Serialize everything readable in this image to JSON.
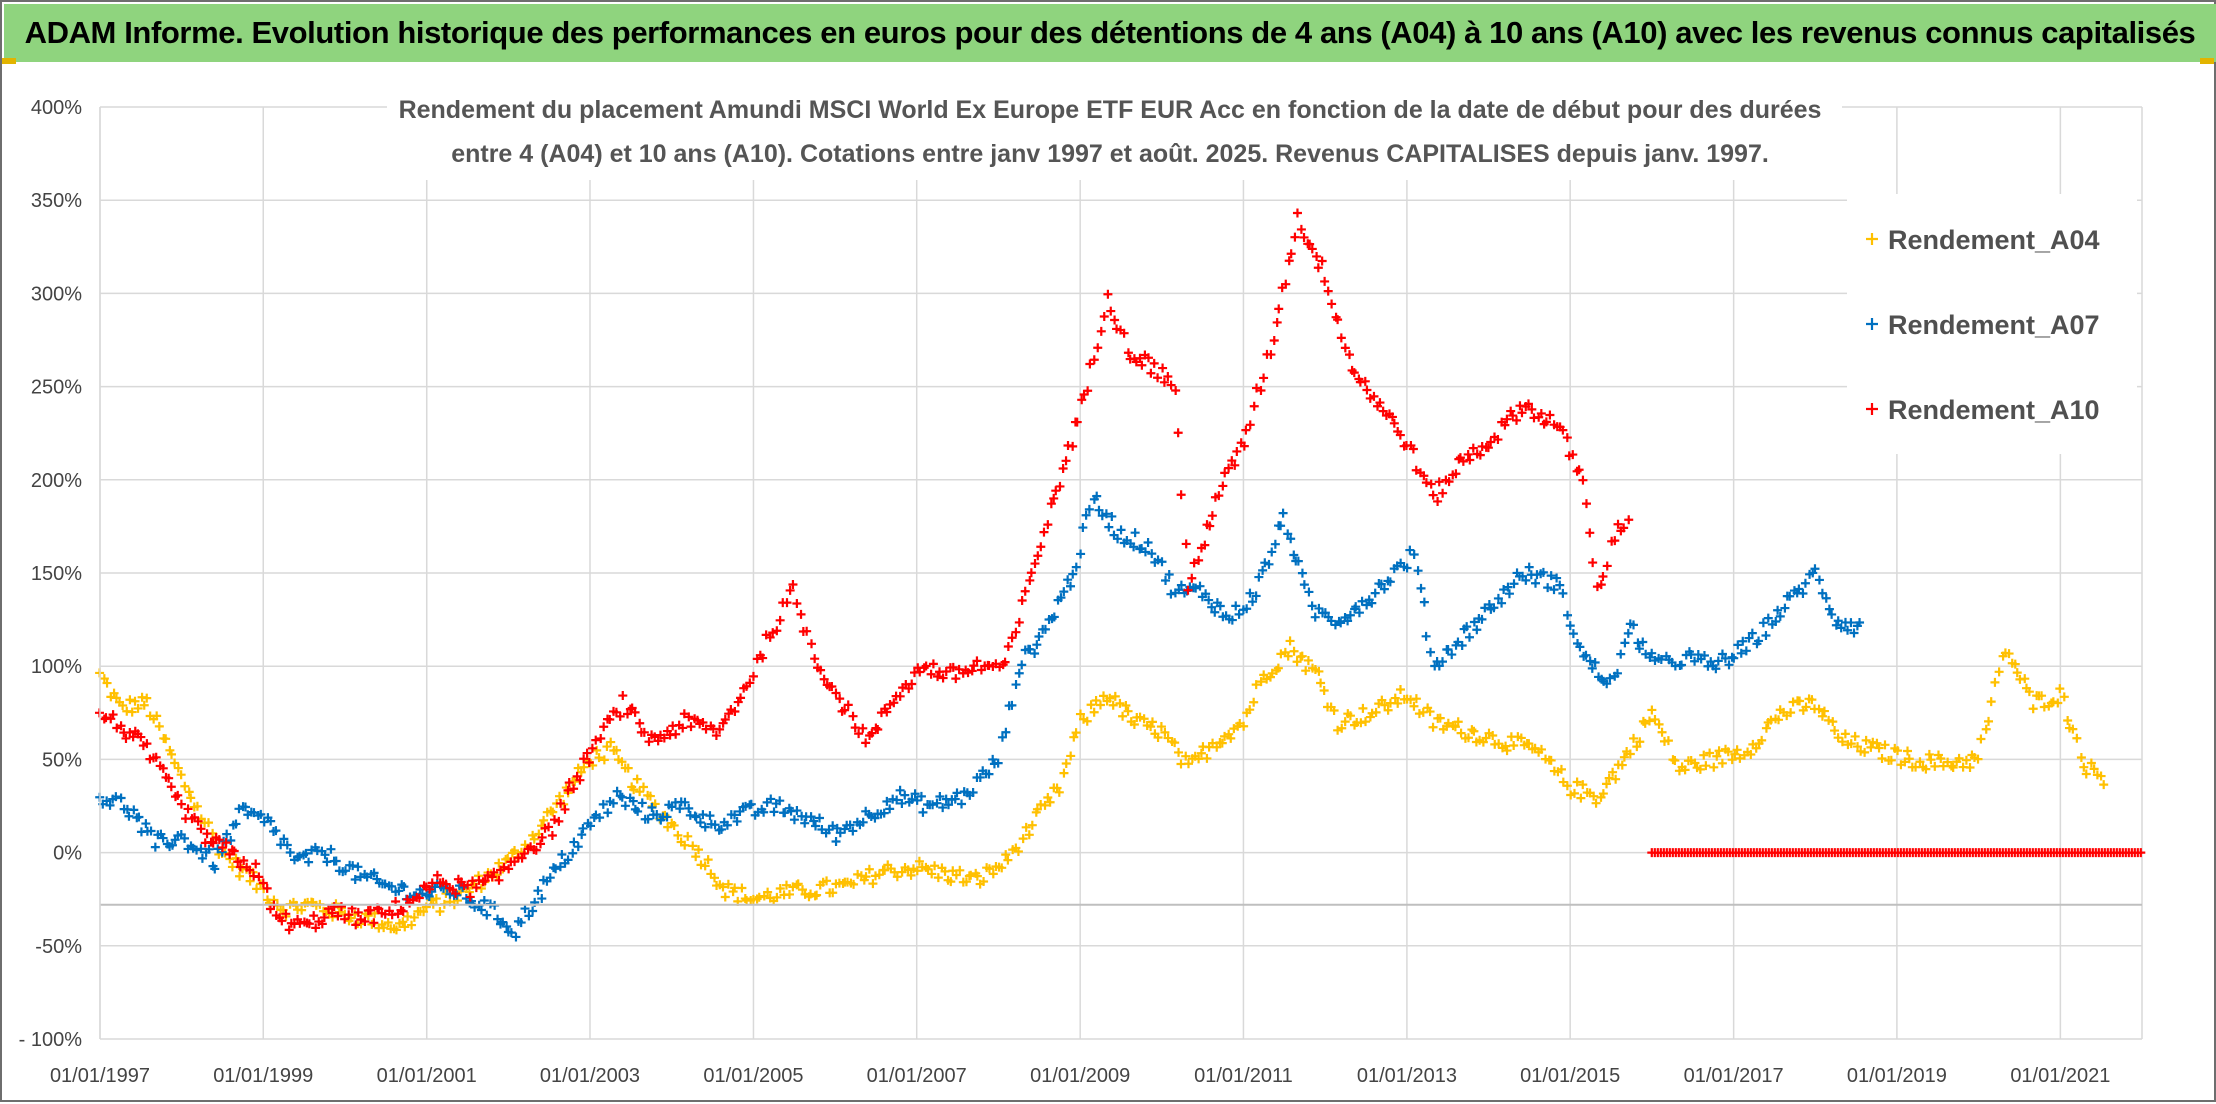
{
  "banner": {
    "title": "ADAM Informe. Evolution historique des performances en euros pour des détentions de 4 ans (A04) à 10 ans (A10) avec les revenus connus capitalisés"
  },
  "colors": {
    "banner_bg": "#8fd47e",
    "A04": "#ffc000",
    "A07": "#0070c0",
    "A10": "#ff0000",
    "grid": "#d9d9d9"
  },
  "chart_data": {
    "type": "scatter",
    "title_lines": [
      "Rendement du placement Amundi MSCI World Ex Europe ETF EUR Acc en fonction de la date de début pour des durées",
      "entre 4 (A04) et 10 ans (A10). Cotations entre janv 1997 et août. 2025. Revenus CAPITALISES depuis janv. 1997."
    ],
    "x_axis": {
      "start": "1997-01-01",
      "end": "2022-01-01",
      "tick_labels": [
        "01/01/1997",
        "01/01/1999",
        "01/01/2001",
        "01/01/2003",
        "01/01/2005",
        "01/01/2007",
        "01/01/2009",
        "01/01/2011",
        "01/01/2013",
        "01/01/2015",
        "01/01/2017",
        "01/01/2019",
        "01/01/2021"
      ]
    },
    "y_axis": {
      "min": -100,
      "max": 400,
      "step": 50,
      "unit": "%",
      "tick_labels": [
        "400%",
        "350%",
        "300%",
        "250%",
        "200%",
        "150%",
        "100%",
        "50%",
        "0%",
        "-50%",
        "- 100%"
      ]
    },
    "grid": true,
    "legend_position": "right",
    "marker": "+",
    "series": [
      {
        "name": "Rendement_A04",
        "color": "#ffc000",
        "points": [
          [
            "1997-01-01",
            95
          ],
          [
            "1997-04-01",
            78
          ],
          [
            "1997-08-01",
            80
          ],
          [
            "1998-01-01",
            40
          ],
          [
            "1998-04-01",
            20
          ],
          [
            "1998-07-01",
            0
          ],
          [
            "1998-10-01",
            -10
          ],
          [
            "1999-01-01",
            -20
          ],
          [
            "1999-04-01",
            -30
          ],
          [
            "1999-08-01",
            -28
          ],
          [
            "2000-01-01",
            -33
          ],
          [
            "2000-05-01",
            -36
          ],
          [
            "2000-09-01",
            -40
          ],
          [
            "2001-01-01",
            -30
          ],
          [
            "2001-05-01",
            -25
          ],
          [
            "2001-09-01",
            -15
          ],
          [
            "2002-01-01",
            -5
          ],
          [
            "2002-05-01",
            10
          ],
          [
            "2002-09-01",
            30
          ],
          [
            "2003-01-01",
            50
          ],
          [
            "2003-04-01",
            55
          ],
          [
            "2003-08-01",
            35
          ],
          [
            "2004-01-01",
            15
          ],
          [
            "2004-05-01",
            0
          ],
          [
            "2004-09-01",
            -20
          ],
          [
            "2005-01-01",
            -25
          ],
          [
            "2005-05-01",
            -22
          ],
          [
            "2005-10-01",
            -20
          ],
          [
            "2006-03-01",
            -18
          ],
          [
            "2006-08-01",
            -10
          ],
          [
            "2007-01-01",
            -8
          ],
          [
            "2007-06-01",
            -12
          ],
          [
            "2007-10-01",
            -15
          ],
          [
            "2008-02-01",
            -5
          ],
          [
            "2008-06-01",
            15
          ],
          [
            "2008-10-01",
            35
          ],
          [
            "2009-01-01",
            70
          ],
          [
            "2009-05-01",
            85
          ],
          [
            "2009-09-01",
            70
          ],
          [
            "2010-01-01",
            65
          ],
          [
            "2010-05-01",
            45
          ],
          [
            "2010-09-01",
            60
          ],
          [
            "2011-01-01",
            70
          ],
          [
            "2011-04-01",
            95
          ],
          [
            "2011-08-01",
            110
          ],
          [
            "2011-12-01",
            95
          ],
          [
            "2012-03-01",
            70
          ],
          [
            "2012-08-01",
            75
          ],
          [
            "2013-01-01",
            85
          ],
          [
            "2013-05-01",
            70
          ],
          [
            "2013-10-01",
            65
          ],
          [
            "2014-03-01",
            60
          ],
          [
            "2014-08-01",
            55
          ],
          [
            "2015-01-01",
            35
          ],
          [
            "2015-05-01",
            30
          ],
          [
            "2015-09-01",
            50
          ],
          [
            "2016-01-01",
            75
          ],
          [
            "2016-05-01",
            45
          ],
          [
            "2016-10-01",
            50
          ],
          [
            "2017-03-01",
            55
          ],
          [
            "2017-08-01",
            75
          ],
          [
            "2018-01-01",
            80
          ],
          [
            "2018-05-01",
            60
          ],
          [
            "2018-10-01",
            55
          ],
          [
            "2019-03-01",
            50
          ],
          [
            "2019-08-01",
            48
          ],
          [
            "2020-01-01",
            50
          ],
          [
            "2020-05-01",
            110
          ],
          [
            "2020-09-01",
            80
          ],
          [
            "2021-01-01",
            85
          ],
          [
            "2021-05-01",
            45
          ],
          [
            "2021-08-01",
            40
          ]
        ]
      },
      {
        "name": "Rendement_A07",
        "color": "#0070c0",
        "points": [
          [
            "1997-01-01",
            30
          ],
          [
            "1997-05-01",
            25
          ],
          [
            "1997-09-01",
            5
          ],
          [
            "1998-01-01",
            8
          ],
          [
            "1998-06-01",
            -5
          ],
          [
            "1998-10-01",
            22
          ],
          [
            "1999-02-01",
            15
          ],
          [
            "1999-06-01",
            -5
          ],
          [
            "1999-10-01",
            0
          ],
          [
            "2000-03-01",
            -12
          ],
          [
            "2000-07-01",
            -18
          ],
          [
            "2000-12-01",
            -22
          ],
          [
            "2001-05-01",
            -20
          ],
          [
            "2001-10-01",
            -30
          ],
          [
            "2002-02-01",
            -42
          ],
          [
            "2002-05-01",
            -25
          ],
          [
            "2002-09-01",
            -5
          ],
          [
            "2003-01-01",
            15
          ],
          [
            "2003-05-01",
            30
          ],
          [
            "2003-10-01",
            20
          ],
          [
            "2004-03-01",
            25
          ],
          [
            "2004-07-01",
            15
          ],
          [
            "2004-11-01",
            20
          ],
          [
            "2005-04-01",
            25
          ],
          [
            "2005-08-01",
            20
          ],
          [
            "2006-01-01",
            10
          ],
          [
            "2006-06-01",
            20
          ],
          [
            "2006-10-01",
            30
          ],
          [
            "2007-03-01",
            25
          ],
          [
            "2007-08-01",
            30
          ],
          [
            "2008-01-01",
            50
          ],
          [
            "2008-04-01",
            100
          ],
          [
            "2008-08-01",
            120
          ],
          [
            "2008-12-01",
            150
          ],
          [
            "2009-03-01",
            190
          ],
          [
            "2009-07-01",
            170
          ],
          [
            "2009-11-01",
            165
          ],
          [
            "2010-03-01",
            140
          ],
          [
            "2010-07-01",
            140
          ],
          [
            "2010-11-01",
            125
          ],
          [
            "2011-03-01",
            140
          ],
          [
            "2011-07-01",
            180
          ],
          [
            "2011-11-01",
            130
          ],
          [
            "2012-03-01",
            125
          ],
          [
            "2012-07-01",
            135
          ],
          [
            "2012-11-01",
            150
          ],
          [
            "2013-02-01",
            160
          ],
          [
            "2013-05-01",
            100
          ],
          [
            "2013-09-01",
            115
          ],
          [
            "2014-01-01",
            130
          ],
          [
            "2014-06-01",
            150
          ],
          [
            "2014-11-01",
            145
          ],
          [
            "2015-03-01",
            105
          ],
          [
            "2015-07-01",
            90
          ],
          [
            "2015-10-01",
            120
          ],
          [
            "2016-02-01",
            100
          ],
          [
            "2016-06-01",
            105
          ],
          [
            "2016-10-01",
            100
          ],
          [
            "2017-03-01",
            110
          ],
          [
            "2017-08-01",
            130
          ],
          [
            "2018-01-01",
            150
          ],
          [
            "2018-04-01",
            125
          ],
          [
            "2018-08-01",
            120
          ]
        ]
      },
      {
        "name": "Rendement_A10",
        "color": "#ff0000",
        "points": [
          [
            "1997-01-01",
            75
          ],
          [
            "1997-04-01",
            68
          ],
          [
            "1997-08-01",
            55
          ],
          [
            "1997-12-01",
            30
          ],
          [
            "1998-04-01",
            10
          ],
          [
            "1998-08-01",
            0
          ],
          [
            "1998-12-01",
            -10
          ],
          [
            "1999-03-01",
            -35
          ],
          [
            "1999-07-01",
            -40
          ],
          [
            "1999-11-01",
            -32
          ],
          [
            "2000-03-01",
            -35
          ],
          [
            "2000-07-01",
            -33
          ],
          [
            "2000-11-01",
            -25
          ],
          [
            "2001-03-01",
            -15
          ],
          [
            "2001-07-01",
            -20
          ],
          [
            "2001-11-01",
            -15
          ],
          [
            "2002-03-01",
            0
          ],
          [
            "2002-07-01",
            10
          ],
          [
            "2002-11-01",
            40
          ],
          [
            "2003-03-01",
            65
          ],
          [
            "2003-06-01",
            80
          ],
          [
            "2003-10-01",
            60
          ],
          [
            "2004-03-01",
            70
          ],
          [
            "2004-08-01",
            65
          ],
          [
            "2004-12-01",
            90
          ],
          [
            "2005-04-01",
            120
          ],
          [
            "2005-07-01",
            140
          ],
          [
            "2005-10-01",
            105
          ],
          [
            "2006-02-01",
            80
          ],
          [
            "2006-06-01",
            60
          ],
          [
            "2006-10-01",
            85
          ],
          [
            "2007-02-01",
            100
          ],
          [
            "2007-06-01",
            95
          ],
          [
            "2007-10-01",
            100
          ],
          [
            "2008-02-01",
            100
          ],
          [
            "2008-06-01",
            150
          ],
          [
            "2008-10-01",
            200
          ],
          [
            "2009-02-01",
            250
          ],
          [
            "2009-05-01",
            300
          ],
          [
            "2009-08-01",
            270
          ],
          [
            "2009-12-01",
            260
          ],
          [
            "2010-03-01",
            250
          ],
          [
            "2010-05-01",
            140
          ],
          [
            "2010-09-01",
            190
          ],
          [
            "2011-01-01",
            220
          ],
          [
            "2011-05-01",
            270
          ],
          [
            "2011-09-01",
            340
          ],
          [
            "2012-01-01",
            310
          ],
          [
            "2012-05-01",
            260
          ],
          [
            "2012-09-01",
            240
          ],
          [
            "2013-01-01",
            220
          ],
          [
            "2013-05-01",
            190
          ],
          [
            "2013-09-01",
            210
          ],
          [
            "2014-01-01",
            220
          ],
          [
            "2014-06-01",
            240
          ],
          [
            "2014-11-01",
            230
          ],
          [
            "2015-03-01",
            200
          ],
          [
            "2015-05-01",
            140
          ],
          [
            "2015-08-01",
            175
          ],
          [
            "2015-10-01",
            180
          ]
        ],
        "flat_zero": [
          "2016-01-01",
          "2022-01-01"
        ]
      }
    ]
  }
}
